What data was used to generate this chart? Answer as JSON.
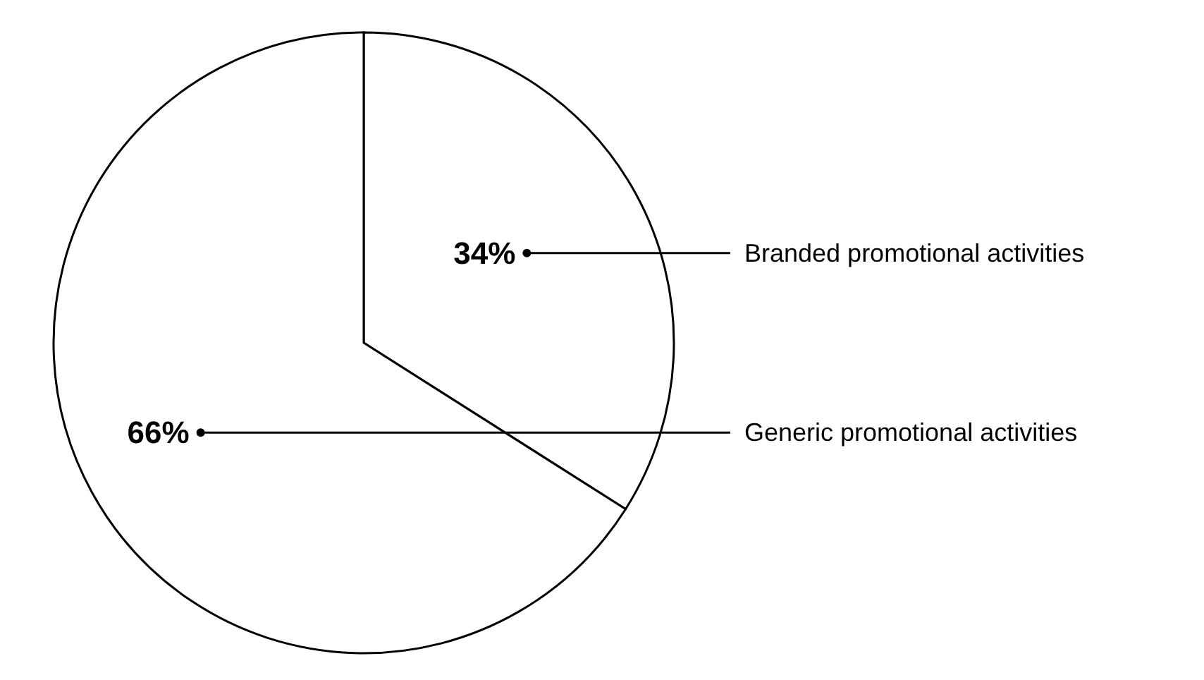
{
  "chart_data": {
    "type": "pie",
    "categories": [
      "Branded promotional activities",
      "Generic promotional activities"
    ],
    "values": [
      34,
      66
    ],
    "colors": [
      "#ffffff",
      "#ffffff"
    ],
    "value_labels": [
      "34%",
      "66%"
    ]
  }
}
